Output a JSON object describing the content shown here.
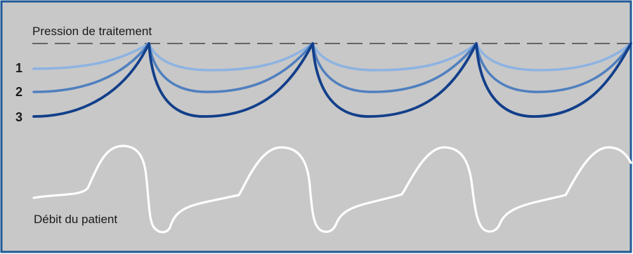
{
  "diagram": {
    "pressure_label": "Pression de traitement",
    "flow_label": "Débit du patient",
    "curve_labels": [
      "1",
      "2",
      "3"
    ]
  },
  "colors": {
    "background": "#c8c8c8",
    "frame": "#1f5a96",
    "dashed_line": "#2a2a2a",
    "curve_1": "#8db3e2",
    "curve_2": "#4f7fbf",
    "curve_3": "#123f8a",
    "flow_curve": "#ffffff",
    "label_text": "#1a1a1a"
  }
}
